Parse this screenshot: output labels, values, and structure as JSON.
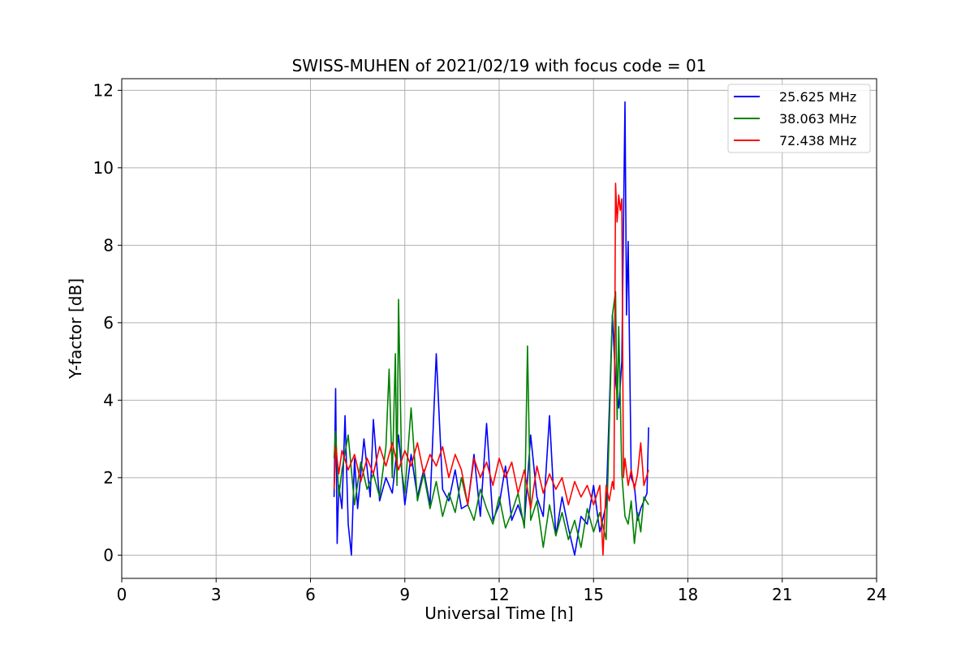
{
  "chart_data": {
    "type": "line",
    "title": "SWISS-MUHEN of 2021/02/19 with focus code = 01",
    "xlabel": "Universal Time [h]",
    "ylabel": "Y-factor [dB]",
    "xlim": [
      0,
      24
    ],
    "ylim": [
      -0.6,
      12.3
    ],
    "xticks": [
      0,
      3,
      6,
      9,
      12,
      15,
      18,
      21,
      24
    ],
    "yticks": [
      0,
      2,
      4,
      6,
      8,
      10,
      12
    ],
    "grid": true,
    "legend_position": "top-right",
    "series": [
      {
        "name": "25.625 MHz",
        "color": "#0000ff",
        "x": [
          6.75,
          6.8,
          6.85,
          6.9,
          7.0,
          7.1,
          7.2,
          7.3,
          7.4,
          7.5,
          7.7,
          7.9,
          8.0,
          8.2,
          8.4,
          8.6,
          8.8,
          9.0,
          9.2,
          9.4,
          9.6,
          9.8,
          10.0,
          10.2,
          10.4,
          10.6,
          10.8,
          11.0,
          11.2,
          11.4,
          11.6,
          11.8,
          12.0,
          12.2,
          12.4,
          12.6,
          12.8,
          13.0,
          13.2,
          13.4,
          13.6,
          13.8,
          14.0,
          14.2,
          14.4,
          14.6,
          14.8,
          15.0,
          15.2,
          15.4,
          15.6,
          15.7,
          15.8,
          15.9,
          16.0,
          16.05,
          16.1,
          16.2,
          16.3,
          16.4,
          16.5,
          16.6,
          16.7,
          16.75
        ],
        "y": [
          1.5,
          4.3,
          0.3,
          1.8,
          1.2,
          3.6,
          0.8,
          0.0,
          2.5,
          1.2,
          3.0,
          1.5,
          3.5,
          1.4,
          2.0,
          1.6,
          3.1,
          1.3,
          2.6,
          1.5,
          2.2,
          1.3,
          5.2,
          1.7,
          1.4,
          2.2,
          1.2,
          1.3,
          2.6,
          1.0,
          3.4,
          0.9,
          1.3,
          2.3,
          0.9,
          1.3,
          0.8,
          3.1,
          1.5,
          1.0,
          3.6,
          0.5,
          1.5,
          0.7,
          0.0,
          1.0,
          0.8,
          1.8,
          0.6,
          1.3,
          6.2,
          4.5,
          3.8,
          5.0,
          11.7,
          6.2,
          8.1,
          2.0,
          1.8,
          0.9,
          1.2,
          1.4,
          1.6,
          3.3
        ]
      },
      {
        "name": "38.063 MHz",
        "color": "#008000",
        "x": [
          6.75,
          6.8,
          6.9,
          7.0,
          7.2,
          7.4,
          7.6,
          7.8,
          8.0,
          8.2,
          8.4,
          8.5,
          8.6,
          8.7,
          8.75,
          8.8,
          8.9,
          9.0,
          9.2,
          9.4,
          9.6,
          9.8,
          10.0,
          10.2,
          10.4,
          10.6,
          10.8,
          11.0,
          11.2,
          11.4,
          11.6,
          11.8,
          12.0,
          12.2,
          12.4,
          12.6,
          12.8,
          12.9,
          13.0,
          13.2,
          13.4,
          13.6,
          13.8,
          14.0,
          14.2,
          14.4,
          14.6,
          14.8,
          15.0,
          15.2,
          15.4,
          15.6,
          15.7,
          15.75,
          15.8,
          15.9,
          16.0,
          16.1,
          16.2,
          16.3,
          16.4,
          16.5,
          16.6,
          16.75
        ],
        "y": [
          2.5,
          3.2,
          1.5,
          2.2,
          3.1,
          1.3,
          2.4,
          1.7,
          2.1,
          1.5,
          2.8,
          4.8,
          2.0,
          5.2,
          1.8,
          6.6,
          2.2,
          1.6,
          3.8,
          1.4,
          2.1,
          1.2,
          1.9,
          1.0,
          1.6,
          1.1,
          2.0,
          1.3,
          0.9,
          1.7,
          1.2,
          0.8,
          1.5,
          0.7,
          1.1,
          1.6,
          0.7,
          5.4,
          0.9,
          1.4,
          0.2,
          1.3,
          0.5,
          1.1,
          0.4,
          0.9,
          0.2,
          1.2,
          0.6,
          1.1,
          0.4,
          6.2,
          6.8,
          3.5,
          5.9,
          2.1,
          1.0,
          0.8,
          1.4,
          0.3,
          1.1,
          0.6,
          1.5,
          1.3
        ]
      },
      {
        "name": "72.438 MHz",
        "color": "#ff0000",
        "x": [
          6.75,
          6.8,
          6.9,
          7.0,
          7.2,
          7.4,
          7.6,
          7.8,
          8.0,
          8.2,
          8.4,
          8.6,
          8.8,
          9.0,
          9.2,
          9.4,
          9.6,
          9.8,
          10.0,
          10.2,
          10.4,
          10.6,
          10.8,
          11.0,
          11.2,
          11.4,
          11.6,
          11.8,
          12.0,
          12.2,
          12.4,
          12.6,
          12.8,
          13.0,
          13.2,
          13.4,
          13.6,
          13.8,
          14.0,
          14.2,
          14.4,
          14.6,
          14.8,
          15.0,
          15.2,
          15.3,
          15.4,
          15.5,
          15.6,
          15.65,
          15.7,
          15.75,
          15.8,
          15.85,
          15.9,
          15.95,
          16.0,
          16.1,
          16.2,
          16.3,
          16.4,
          16.5,
          16.6,
          16.75
        ],
        "y": [
          1.7,
          2.8,
          2.1,
          2.7,
          2.2,
          2.6,
          1.9,
          2.5,
          2.1,
          2.8,
          2.3,
          2.9,
          2.2,
          2.7,
          2.3,
          2.9,
          2.1,
          2.6,
          2.3,
          2.8,
          2.0,
          2.6,
          2.2,
          1.3,
          2.5,
          2.0,
          2.4,
          1.8,
          2.5,
          2.0,
          2.4,
          1.6,
          2.2,
          1.2,
          2.3,
          1.6,
          2.1,
          1.7,
          2.0,
          1.3,
          1.9,
          1.5,
          1.8,
          1.3,
          1.8,
          0.0,
          1.8,
          1.4,
          1.9,
          1.7,
          9.6,
          8.6,
          9.3,
          8.9,
          9.2,
          2.0,
          2.5,
          1.8,
          2.2,
          1.7,
          2.1,
          2.9,
          1.8,
          2.2
        ]
      }
    ]
  }
}
